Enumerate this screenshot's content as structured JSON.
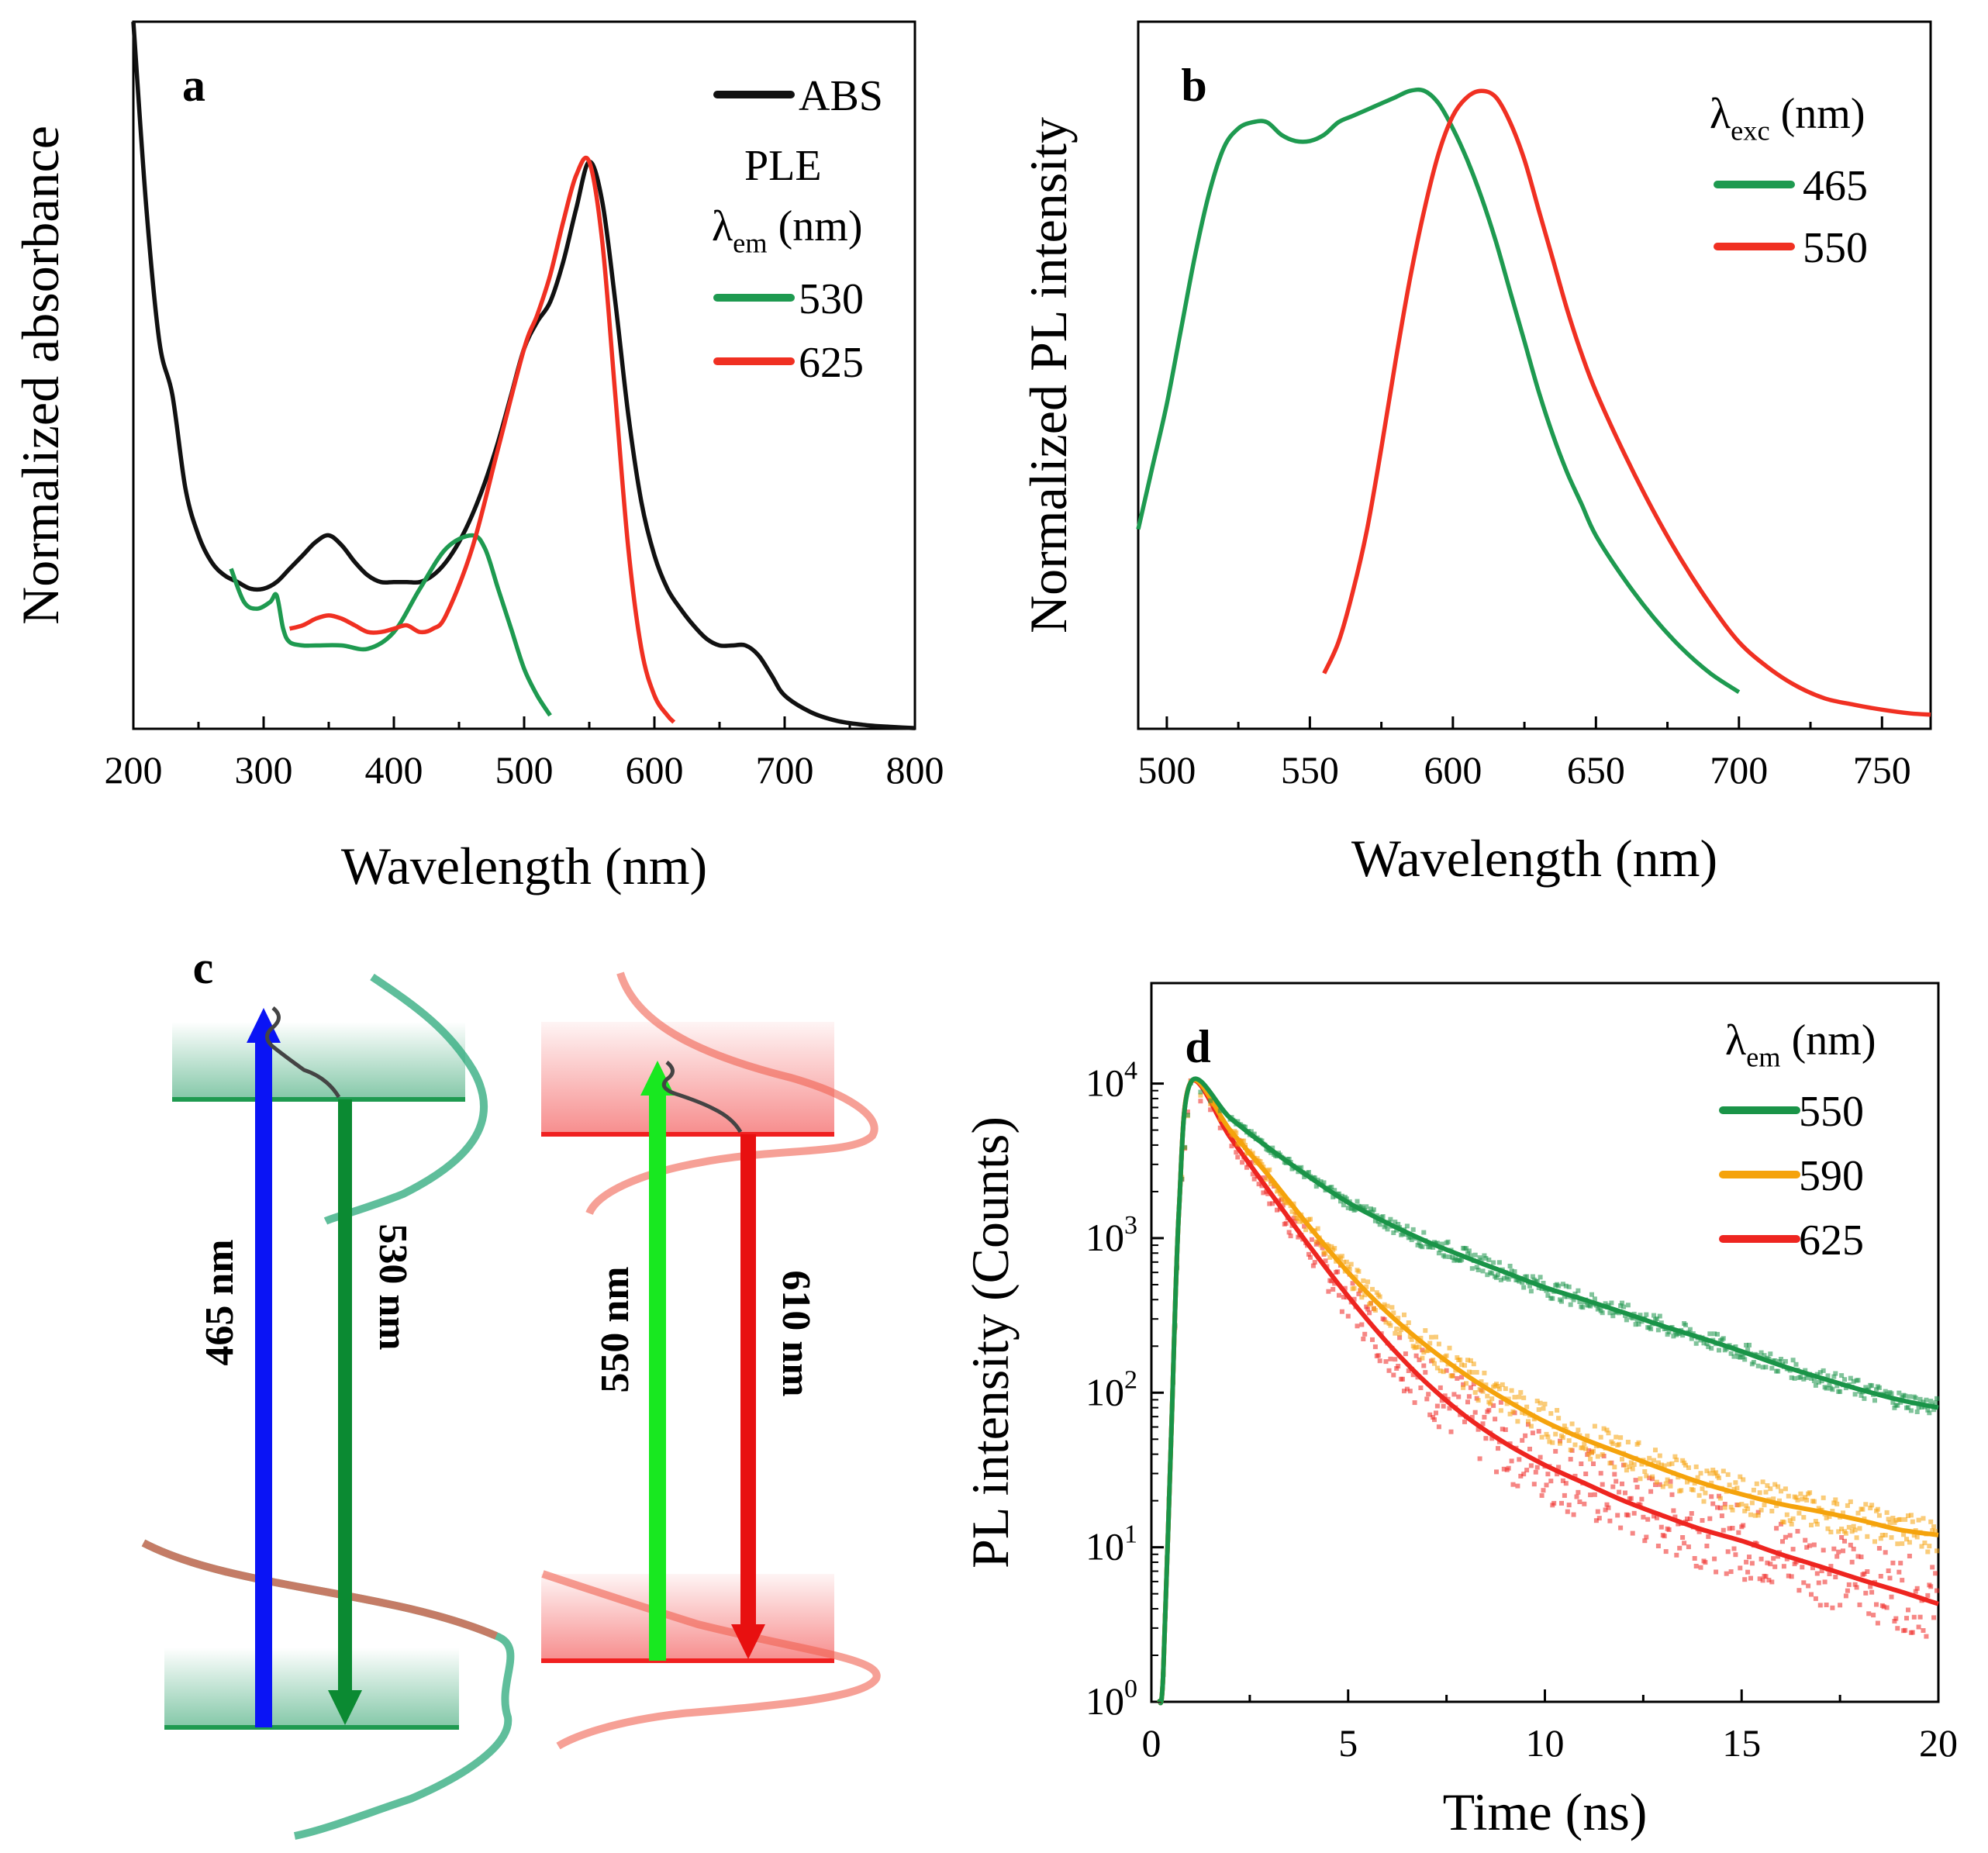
{
  "figure": {
    "panels": [
      "a",
      "b",
      "c",
      "d"
    ]
  },
  "chart_data": [
    {
      "panel": "a",
      "type": "line",
      "xlabel": "Wavelength (nm)",
      "ylabel": "Normalized absorbance",
      "xlim": [
        200,
        800
      ],
      "ylim": [
        0,
        1.06
      ],
      "xticks": [
        200,
        300,
        400,
        500,
        600,
        700,
        800
      ],
      "legend": {
        "header1": "PLE",
        "header2": "λem (nm)"
      },
      "series": [
        {
          "name": "ABS",
          "color": "#111111",
          "x": [
            200,
            210,
            220,
            230,
            240,
            250,
            260,
            270,
            280,
            290,
            300,
            310,
            320,
            330,
            340,
            350,
            360,
            370,
            380,
            390,
            400,
            410,
            420,
            430,
            440,
            450,
            460,
            470,
            480,
            490,
            500,
            510,
            520,
            530,
            540,
            550,
            560,
            570,
            580,
            590,
            600,
            610,
            620,
            630,
            640,
            650,
            660,
            670,
            680,
            690,
            700,
            720,
            740,
            760,
            780,
            800
          ],
          "y": [
            1.06,
            0.78,
            0.58,
            0.5,
            0.36,
            0.29,
            0.25,
            0.23,
            0.22,
            0.21,
            0.21,
            0.22,
            0.24,
            0.26,
            0.28,
            0.29,
            0.275,
            0.25,
            0.23,
            0.22,
            0.22,
            0.22,
            0.22,
            0.23,
            0.25,
            0.28,
            0.32,
            0.37,
            0.43,
            0.5,
            0.57,
            0.61,
            0.64,
            0.7,
            0.78,
            0.85,
            0.79,
            0.64,
            0.47,
            0.34,
            0.26,
            0.21,
            0.18,
            0.155,
            0.135,
            0.125,
            0.125,
            0.125,
            0.11,
            0.08,
            0.05,
            0.025,
            0.012,
            0.006,
            0.003,
            0.001
          ]
        },
        {
          "name": "530",
          "color": "#1e9a50",
          "x": [
            275,
            285,
            295,
            305,
            310,
            315,
            320,
            330,
            340,
            360,
            380,
            400,
            420,
            440,
            460,
            470,
            480,
            490,
            500,
            510,
            520
          ],
          "y": [
            0.24,
            0.19,
            0.18,
            0.19,
            0.2,
            0.15,
            0.13,
            0.125,
            0.125,
            0.125,
            0.12,
            0.145,
            0.21,
            0.27,
            0.29,
            0.27,
            0.21,
            0.15,
            0.09,
            0.05,
            0.02
          ]
        },
        {
          "name": "625",
          "color": "#f03022",
          "x": [
            320,
            330,
            340,
            350,
            360,
            370,
            380,
            390,
            400,
            410,
            420,
            430,
            440,
            460,
            480,
            500,
            510,
            520,
            530,
            540,
            550,
            560,
            570,
            580,
            590,
            600,
            610,
            615
          ],
          "y": [
            0.15,
            0.155,
            0.165,
            0.17,
            0.165,
            0.155,
            0.145,
            0.145,
            0.15,
            0.155,
            0.145,
            0.15,
            0.17,
            0.27,
            0.42,
            0.57,
            0.62,
            0.68,
            0.76,
            0.83,
            0.85,
            0.73,
            0.5,
            0.27,
            0.12,
            0.05,
            0.02,
            0.01
          ]
        }
      ]
    },
    {
      "panel": "b",
      "type": "line",
      "xlabel": "Wavelength (nm)",
      "ylabel": "Normalized PL intensity",
      "xlim": [
        490,
        767
      ],
      "ylim": [
        0,
        1.05
      ],
      "xticks": [
        500,
        550,
        600,
        650,
        700,
        750
      ],
      "legend": {
        "header": "λexc (nm)"
      },
      "series": [
        {
          "name": "465",
          "color": "#1e9a50",
          "x": [
            490,
            495,
            500,
            505,
            510,
            515,
            520,
            525,
            530,
            535,
            540,
            545,
            550,
            555,
            560,
            565,
            570,
            575,
            580,
            585,
            590,
            595,
            600,
            605,
            610,
            615,
            620,
            625,
            630,
            635,
            640,
            645,
            650,
            660,
            670,
            680,
            690,
            700
          ],
          "y": [
            0.3,
            0.4,
            0.5,
            0.62,
            0.74,
            0.84,
            0.91,
            0.94,
            0.95,
            0.95,
            0.93,
            0.92,
            0.92,
            0.93,
            0.95,
            0.96,
            0.97,
            0.98,
            0.99,
            1.0,
            1.0,
            0.98,
            0.94,
            0.89,
            0.83,
            0.76,
            0.68,
            0.6,
            0.52,
            0.45,
            0.39,
            0.34,
            0.29,
            0.22,
            0.16,
            0.11,
            0.07,
            0.04
          ]
        },
        {
          "name": "550",
          "color": "#f03022",
          "x": [
            555,
            560,
            565,
            570,
            575,
            580,
            585,
            590,
            595,
            600,
            605,
            610,
            615,
            620,
            625,
            630,
            635,
            640,
            645,
            650,
            660,
            670,
            680,
            690,
            700,
            710,
            720,
            730,
            740,
            750,
            760,
            767
          ],
          "y": [
            0.07,
            0.12,
            0.2,
            0.3,
            0.43,
            0.57,
            0.7,
            0.81,
            0.9,
            0.96,
            0.99,
            1.0,
            0.99,
            0.95,
            0.89,
            0.81,
            0.73,
            0.65,
            0.58,
            0.52,
            0.42,
            0.33,
            0.25,
            0.18,
            0.12,
            0.08,
            0.05,
            0.03,
            0.02,
            0.012,
            0.006,
            0.004
          ]
        }
      ]
    },
    {
      "panel": "c",
      "type": "other",
      "arrows": [
        "465 nm",
        "530 nm",
        "550 nm",
        "610 nm"
      ],
      "colors": {
        "blue": "#0a14f5",
        "darkgreen": "#0b8a32",
        "green": "#18e820",
        "red": "#e81010"
      }
    },
    {
      "panel": "d",
      "type": "scatter",
      "xlabel": "Time (ns)",
      "ylabel": "PL intensity (Counts)",
      "xlim": [
        0,
        20
      ],
      "ylim_log10": [
        0,
        4.65
      ],
      "xticks": [
        0,
        5,
        10,
        15,
        20
      ],
      "yticks": [
        "10^0",
        "10^1",
        "10^2",
        "10^3",
        "10^4"
      ],
      "legend": {
        "header": "λem (nm)"
      },
      "series": [
        {
          "name": "550",
          "color": "#1a9448",
          "x": [
            0.2,
            0.3,
            0.5,
            0.7,
            1.0,
            2,
            3,
            4,
            5,
            6,
            7,
            8,
            9,
            10,
            11,
            12,
            13,
            14,
            15,
            16,
            17,
            18,
            19,
            20
          ],
          "y": [
            1,
            1.5,
            50,
            1500,
            10200,
            6000,
            3800,
            2500,
            1700,
            1250,
            950,
            750,
            600,
            480,
            400,
            330,
            270,
            225,
            185,
            150,
            125,
            105,
            90,
            80
          ]
        },
        {
          "name": "590",
          "color": "#f5a30c",
          "x": [
            0.2,
            0.3,
            0.5,
            0.7,
            1.0,
            2,
            3,
            4,
            5,
            6,
            7,
            8,
            9,
            10,
            11,
            12,
            13,
            14,
            15,
            16,
            17,
            18,
            19,
            20
          ],
          "y": [
            1,
            1.5,
            50,
            1500,
            10200,
            5000,
            2500,
            1200,
            600,
            330,
            200,
            130,
            90,
            65,
            50,
            40,
            32,
            26,
            22,
            19,
            17,
            15,
            13,
            12
          ]
        },
        {
          "name": "625",
          "color": "#ee2520",
          "x": [
            0.2,
            0.3,
            0.5,
            0.7,
            1.0,
            2,
            3,
            4,
            5,
            6,
            7,
            8,
            9,
            10,
            11,
            12,
            13,
            14,
            15,
            16,
            17,
            18,
            19,
            20
          ],
          "y": [
            1,
            1.5,
            50,
            1500,
            10200,
            4500,
            2000,
            900,
            420,
            210,
            115,
            70,
            47,
            34,
            26,
            20,
            16,
            13,
            11,
            9,
            7.5,
            6.2,
            5.2,
            4.3
          ]
        }
      ]
    }
  ]
}
